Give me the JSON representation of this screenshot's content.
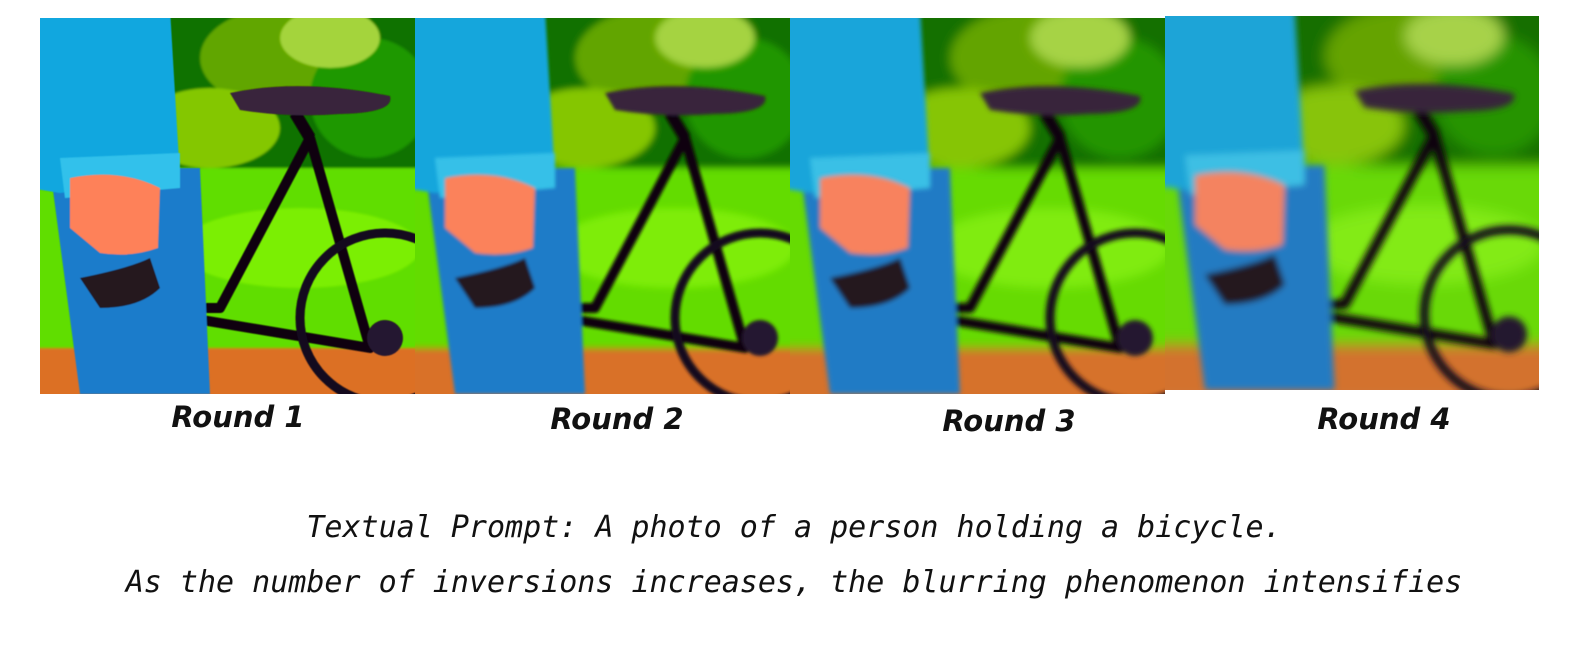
{
  "figure": {
    "panels": [
      {
        "label": "Round 1",
        "blur": 0.6
      },
      {
        "label": "Round 2",
        "blur": 1.6
      },
      {
        "label": "Round 3",
        "blur": 2.4
      },
      {
        "label": "Round 4",
        "blur": 3.2
      }
    ],
    "caption_line1": "Textual Prompt: A photo of a person holding a bicycle.",
    "caption_line2": "As the number of inversions increases, the blurring phenomenon intensifies"
  }
}
